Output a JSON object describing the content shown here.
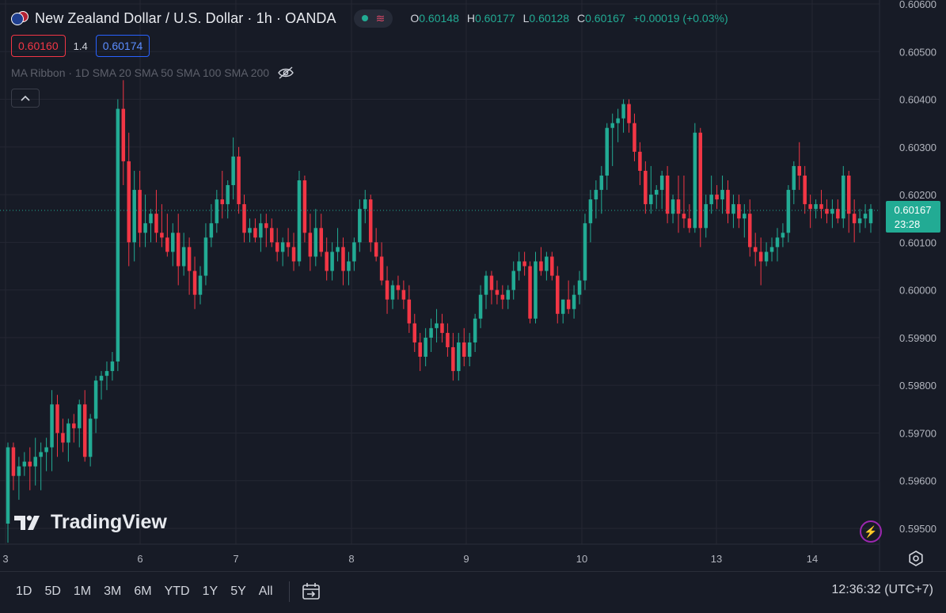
{
  "header": {
    "symbol_title": "New Zealand Dollar / U.S. Dollar · 1h · OANDA",
    "ohlc": [
      {
        "k": "O",
        "v": "0.60148"
      },
      {
        "k": "H",
        "v": "0.60177"
      },
      {
        "k": "L",
        "v": "0.60128"
      },
      {
        "k": "C",
        "v": "0.60167"
      }
    ],
    "change": "+0.00019 (+0.03%)",
    "bid": "0.60160",
    "spread": "1.4",
    "ask": "0.60174",
    "indicator": "MA Ribbon · 1D SMA 20 SMA 50 SMA 100 SMA 200"
  },
  "price_label": {
    "price": "0.60167",
    "countdown": "23:28"
  },
  "watermark": "TradingView",
  "bottom": {
    "timeframes": [
      "1D",
      "5D",
      "1M",
      "3M",
      "6M",
      "YTD",
      "1Y",
      "5Y",
      "All"
    ],
    "clock": "12:36:32 (UTC+7)"
  },
  "colors": {
    "up": "#22ab94",
    "down": "#f23645",
    "background": "#171b26",
    "grid": "#242733",
    "axis_text": "#b2b5be"
  },
  "chart_data": {
    "type": "candlestick",
    "title": "New Zealand Dollar / U.S. Dollar · 1h · OANDA",
    "current_price": 0.60167,
    "ylim": [
      0.5945,
      0.606
    ],
    "y_ticks": [
      "0.60600",
      "0.60500",
      "0.60400",
      "0.60300",
      "0.60200",
      "0.60100",
      "0.60000",
      "0.59900",
      "0.59800",
      "0.59700",
      "0.59600",
      "0.59500"
    ],
    "x_ticks": [
      "3",
      "6",
      "7",
      "8",
      "9",
      "10",
      "13",
      "14"
    ],
    "grid": true,
    "candles": [
      [
        0.5951,
        0.5968,
        0.5947,
        0.5967
      ],
      [
        0.5967,
        0.5968,
        0.5958,
        0.5961
      ],
      [
        0.5961,
        0.5965,
        0.5956,
        0.5963
      ],
      [
        0.5963,
        0.5966,
        0.5961,
        0.5964
      ],
      [
        0.5964,
        0.5967,
        0.5958,
        0.5963
      ],
      [
        0.5963,
        0.5969,
        0.5959,
        0.5965
      ],
      [
        0.5965,
        0.5968,
        0.5958,
        0.5966
      ],
      [
        0.5966,
        0.5969,
        0.5962,
        0.5967
      ],
      [
        0.5967,
        0.5979,
        0.5962,
        0.5976
      ],
      [
        0.5976,
        0.5978,
        0.5965,
        0.597
      ],
      [
        0.597,
        0.5973,
        0.5966,
        0.5968
      ],
      [
        0.5968,
        0.5973,
        0.5964,
        0.5972
      ],
      [
        0.5972,
        0.5974,
        0.5968,
        0.5971
      ],
      [
        0.5971,
        0.5977,
        0.5967,
        0.5976
      ],
      [
        0.5976,
        0.5979,
        0.5964,
        0.5965
      ],
      [
        0.5965,
        0.5974,
        0.5963,
        0.5973
      ],
      [
        0.5973,
        0.5982,
        0.597,
        0.5981
      ],
      [
        0.5981,
        0.5983,
        0.5977,
        0.5982
      ],
      [
        0.5982,
        0.5985,
        0.5979,
        0.5983
      ],
      [
        0.5983,
        0.5987,
        0.5981,
        0.5985
      ],
      [
        0.5985,
        0.604,
        0.5983,
        0.6038
      ],
      [
        0.6038,
        0.6044,
        0.6022,
        0.6027
      ],
      [
        0.6027,
        0.6033,
        0.6005,
        0.601
      ],
      [
        0.601,
        0.6025,
        0.6006,
        0.6021
      ],
      [
        0.6021,
        0.6025,
        0.6009,
        0.6012
      ],
      [
        0.6012,
        0.602,
        0.6009,
        0.6014
      ],
      [
        0.6014,
        0.6017,
        0.601,
        0.6016
      ],
      [
        0.6016,
        0.6021,
        0.601,
        0.6012
      ],
      [
        0.6012,
        0.6018,
        0.6009,
        0.6011
      ],
      [
        0.6011,
        0.6016,
        0.6007,
        0.6008
      ],
      [
        0.6008,
        0.6014,
        0.6005,
        0.6012
      ],
      [
        0.6012,
        0.6016,
        0.6001,
        0.6005
      ],
      [
        0.6005,
        0.6012,
        0.6003,
        0.6009
      ],
      [
        0.6009,
        0.6011,
        0.5999,
        0.6004
      ],
      [
        0.6004,
        0.6007,
        0.5996,
        0.5999
      ],
      [
        0.5999,
        0.6005,
        0.5997,
        0.6003
      ],
      [
        0.6003,
        0.6014,
        0.6001,
        0.6011
      ],
      [
        0.6011,
        0.6018,
        0.6009,
        0.6014
      ],
      [
        0.6014,
        0.6021,
        0.6012,
        0.6019
      ],
      [
        0.6019,
        0.6025,
        0.6015,
        0.6018
      ],
      [
        0.6018,
        0.6023,
        0.6015,
        0.6022
      ],
      [
        0.6022,
        0.6032,
        0.6019,
        0.6028
      ],
      [
        0.6028,
        0.603,
        0.6016,
        0.6018
      ],
      [
        0.6018,
        0.602,
        0.601,
        0.6012
      ],
      [
        0.6012,
        0.6015,
        0.601,
        0.6013
      ],
      [
        0.6013,
        0.6015,
        0.601,
        0.6011
      ],
      [
        0.6011,
        0.6016,
        0.6008,
        0.6014
      ],
      [
        0.6014,
        0.6016,
        0.6009,
        0.6013
      ],
      [
        0.6013,
        0.6015,
        0.6009,
        0.601
      ],
      [
        0.601,
        0.6013,
        0.6006,
        0.6008
      ],
      [
        0.6008,
        0.6011,
        0.6005,
        0.601
      ],
      [
        0.601,
        0.6013,
        0.6007,
        0.6009
      ],
      [
        0.6009,
        0.6012,
        0.6004,
        0.6006
      ],
      [
        0.6006,
        0.6025,
        0.6005,
        0.6023
      ],
      [
        0.6023,
        0.6024,
        0.601,
        0.6012
      ],
      [
        0.6012,
        0.6016,
        0.6004,
        0.6007
      ],
      [
        0.6007,
        0.6017,
        0.6005,
        0.6013
      ],
      [
        0.6013,
        0.6016,
        0.6007,
        0.6008
      ],
      [
        0.6008,
        0.6011,
        0.6002,
        0.6004
      ],
      [
        0.6004,
        0.601,
        0.6002,
        0.6008
      ],
      [
        0.6008,
        0.6013,
        0.6006,
        0.6009
      ],
      [
        0.6009,
        0.6011,
        0.6001,
        0.6004
      ],
      [
        0.6004,
        0.6008,
        0.6001,
        0.6006
      ],
      [
        0.6006,
        0.6011,
        0.6004,
        0.601
      ],
      [
        0.601,
        0.6019,
        0.6008,
        0.6017
      ],
      [
        0.6017,
        0.6021,
        0.6014,
        0.6019
      ],
      [
        0.6019,
        0.602,
        0.6008,
        0.601
      ],
      [
        0.601,
        0.6013,
        0.6006,
        0.6007
      ],
      [
        0.6007,
        0.601,
        0.6001,
        0.6002
      ],
      [
        0.6002,
        0.6005,
        0.5995,
        0.5998
      ],
      [
        0.5998,
        0.6002,
        0.5996,
        0.6001
      ],
      [
        0.6001,
        0.6003,
        0.5998,
        0.6
      ],
      [
        0.6,
        0.6002,
        0.5996,
        0.5998
      ],
      [
        0.5998,
        0.6001,
        0.5991,
        0.5993
      ],
      [
        0.5993,
        0.5995,
        0.5987,
        0.5989
      ],
      [
        0.5989,
        0.5991,
        0.5983,
        0.5986
      ],
      [
        0.5986,
        0.5992,
        0.5984,
        0.599
      ],
      [
        0.599,
        0.5994,
        0.5987,
        0.5992
      ],
      [
        0.5992,
        0.5996,
        0.5989,
        0.5993
      ],
      [
        0.5993,
        0.5995,
        0.5989,
        0.5991
      ],
      [
        0.5991,
        0.5993,
        0.5986,
        0.5988
      ],
      [
        0.5988,
        0.5991,
        0.5981,
        0.5983
      ],
      [
        0.5983,
        0.5991,
        0.5981,
        0.5989
      ],
      [
        0.5989,
        0.5992,
        0.5984,
        0.5986
      ],
      [
        0.5986,
        0.5991,
        0.5984,
        0.5989
      ],
      [
        0.5989,
        0.5995,
        0.5987,
        0.5994
      ],
      [
        0.5994,
        0.6001,
        0.5992,
        0.5999
      ],
      [
        0.5999,
        0.6004,
        0.5996,
        0.6003
      ],
      [
        0.6003,
        0.6004,
        0.5997,
        0.6
      ],
      [
        0.6,
        0.6002,
        0.5997,
        0.5999
      ],
      [
        0.5999,
        0.6001,
        0.5996,
        0.5998
      ],
      [
        0.5998,
        0.6001,
        0.5996,
        0.6
      ],
      [
        0.6,
        0.6006,
        0.5998,
        0.6004
      ],
      [
        0.6004,
        0.6008,
        0.6002,
        0.6006
      ],
      [
        0.6006,
        0.6008,
        0.6003,
        0.6005
      ],
      [
        0.6005,
        0.6006,
        0.5993,
        0.5994
      ],
      [
        0.5994,
        0.6008,
        0.5993,
        0.6006
      ],
      [
        0.6006,
        0.6009,
        0.6003,
        0.6004
      ],
      [
        0.6004,
        0.6008,
        0.6002,
        0.6007
      ],
      [
        0.6007,
        0.6008,
        0.6002,
        0.6003
      ],
      [
        0.6003,
        0.6005,
        0.5993,
        0.5995
      ],
      [
        0.5995,
        0.5998,
        0.5993,
        0.5998
      ],
      [
        0.5998,
        0.6002,
        0.5995,
        0.5996
      ],
      [
        0.5996,
        0.6001,
        0.5994,
        0.5999
      ],
      [
        0.5999,
        0.6004,
        0.5997,
        0.6002
      ],
      [
        0.6002,
        0.6016,
        0.6,
        0.6014
      ],
      [
        0.6014,
        0.6021,
        0.601,
        0.6019
      ],
      [
        0.6019,
        0.6023,
        0.6015,
        0.6021
      ],
      [
        0.6021,
        0.6026,
        0.6016,
        0.6024
      ],
      [
        0.6024,
        0.6035,
        0.6021,
        0.6034
      ],
      [
        0.6034,
        0.6037,
        0.6026,
        0.6035
      ],
      [
        0.6035,
        0.6038,
        0.6031,
        0.6036
      ],
      [
        0.6036,
        0.604,
        0.6033,
        0.6039
      ],
      [
        0.6039,
        0.604,
        0.6033,
        0.6035
      ],
      [
        0.6035,
        0.6037,
        0.6027,
        0.6029
      ],
      [
        0.6029,
        0.6031,
        0.6022,
        0.6025
      ],
      [
        0.6025,
        0.6027,
        0.6016,
        0.6018
      ],
      [
        0.6018,
        0.6026,
        0.6016,
        0.602
      ],
      [
        0.602,
        0.6022,
        0.6017,
        0.6021
      ],
      [
        0.6021,
        0.6025,
        0.6017,
        0.6024
      ],
      [
        0.6024,
        0.6026,
        0.6014,
        0.6016
      ],
      [
        0.6016,
        0.602,
        0.6014,
        0.6019
      ],
      [
        0.6019,
        0.6024,
        0.6012,
        0.6016
      ],
      [
        0.6016,
        0.6024,
        0.6013,
        0.6015
      ],
      [
        0.6015,
        0.6018,
        0.6012,
        0.6013
      ],
      [
        0.6013,
        0.6035,
        0.6012,
        0.6033
      ],
      [
        0.6033,
        0.6034,
        0.6009,
        0.6013
      ],
      [
        0.6013,
        0.602,
        0.6011,
        0.6018
      ],
      [
        0.6018,
        0.6024,
        0.6016,
        0.602
      ],
      [
        0.602,
        0.6022,
        0.6017,
        0.6019
      ],
      [
        0.6019,
        0.6024,
        0.6016,
        0.6021
      ],
      [
        0.6021,
        0.6023,
        0.6014,
        0.6016
      ],
      [
        0.6016,
        0.602,
        0.6013,
        0.6018
      ],
      [
        0.6018,
        0.602,
        0.6013,
        0.6015
      ],
      [
        0.6015,
        0.6018,
        0.6011,
        0.6016
      ],
      [
        0.6016,
        0.6019,
        0.6007,
        0.6009
      ],
      [
        0.6009,
        0.6012,
        0.6005,
        0.6008
      ],
      [
        0.6008,
        0.6011,
        0.6001,
        0.6006
      ],
      [
        0.6006,
        0.601,
        0.6005,
        0.6008
      ],
      [
        0.6008,
        0.6011,
        0.6006,
        0.6009
      ],
      [
        0.6009,
        0.6013,
        0.6006,
        0.6011
      ],
      [
        0.6011,
        0.6014,
        0.6009,
        0.6012
      ],
      [
        0.6012,
        0.6022,
        0.601,
        0.6021
      ],
      [
        0.6021,
        0.6027,
        0.6018,
        0.6026
      ],
      [
        0.6026,
        0.6031,
        0.6021,
        0.6024
      ],
      [
        0.6024,
        0.6026,
        0.6016,
        0.6018
      ],
      [
        0.6018,
        0.602,
        0.6013,
        0.6017
      ],
      [
        0.6017,
        0.6019,
        0.6015,
        0.6018
      ],
      [
        0.6018,
        0.6021,
        0.6015,
        0.6017
      ],
      [
        0.6017,
        0.6019,
        0.6014,
        0.6016
      ],
      [
        0.6016,
        0.6019,
        0.6013,
        0.6017
      ],
      [
        0.6017,
        0.6019,
        0.6014,
        0.6015
      ],
      [
        0.6015,
        0.6026,
        0.6013,
        0.6024
      ],
      [
        0.6024,
        0.6025,
        0.6012,
        0.6016
      ],
      [
        0.6016,
        0.6019,
        0.601,
        0.6014
      ],
      [
        0.6014,
        0.6017,
        0.6012,
        0.6015
      ],
      [
        0.6015,
        0.6018,
        0.6013,
        0.6016
      ],
      [
        0.6014,
        0.6018,
        0.6012,
        0.6017
      ]
    ]
  }
}
